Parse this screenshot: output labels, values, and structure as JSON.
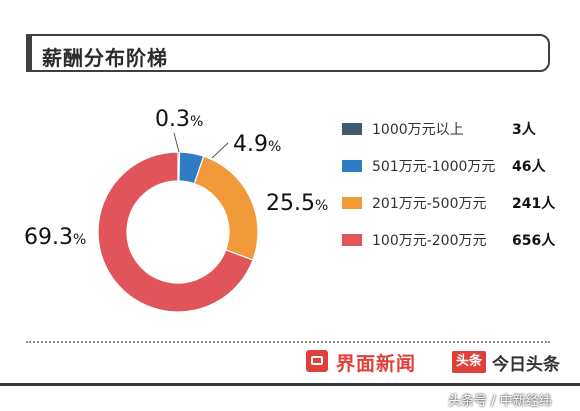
{
  "chart_data": {
    "type": "pie",
    "title": "薪酬分布阶梯",
    "categories": [
      "1000万元以上",
      "501万元-1000万元",
      "201万元-500万元",
      "100万元-200万元"
    ],
    "values": [
      0.3,
      4.9,
      25.5,
      69.3
    ],
    "value_unit": "%",
    "counts": [
      "3人",
      "46人",
      "241人",
      "656人"
    ],
    "colors": [
      "#3d5a73",
      "#2e7cc4",
      "#f29a3a",
      "#e0545a"
    ],
    "legend_position": "right"
  },
  "brands": {
    "jiemian": "界面新闻",
    "toutiao_badge": "头条",
    "toutiao_name": "今日头条"
  },
  "watermark": "头条号 / 中新经纬"
}
